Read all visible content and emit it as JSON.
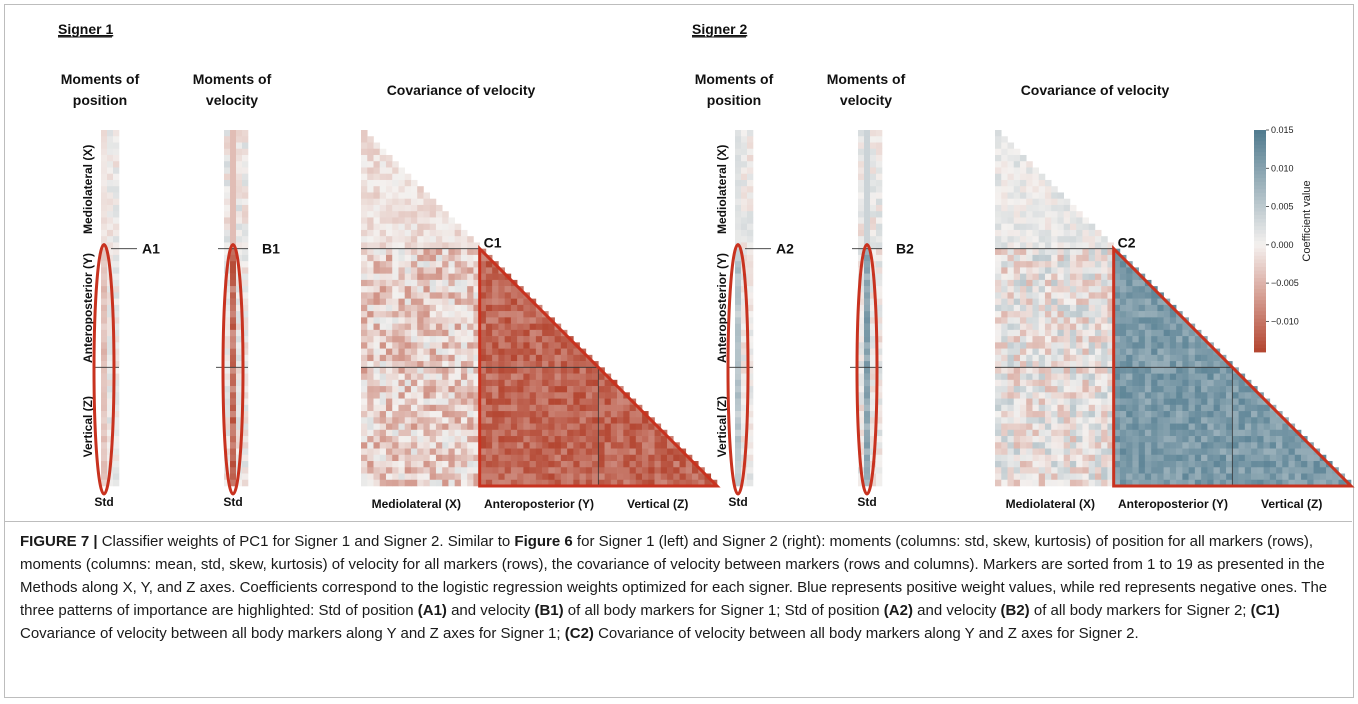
{
  "figure": {
    "panels": [
      {
        "heading": "Signer 1",
        "pos_title": [
          "Moments of",
          "position"
        ],
        "vel_title": [
          "Moments of",
          "velocity"
        ],
        "cov_title": "Covariance of velocity",
        "labels": {
          "a": "A1",
          "b": "B1",
          "c": "C1"
        },
        "row_labels": [
          "Mediolateral (X)",
          "Anteroposterior (Y)",
          "Vertical (Z)"
        ],
        "col_labels": [
          "Mediolateral (X)",
          "Anteroposterior (Y)",
          "Vertical (Z)"
        ],
        "std_label": "Std",
        "polarity": "negative"
      },
      {
        "heading": "Signer 2",
        "pos_title": [
          "Moments of",
          "position"
        ],
        "vel_title": [
          "Moments of",
          "velocity"
        ],
        "cov_title": "Covariance of velocity",
        "labels": {
          "a": "A2",
          "b": "B2",
          "c": "C2"
        },
        "row_labels": [
          "Mediolateral (X)",
          "Anteroposterior (Y)",
          "Vertical (Z)"
        ],
        "col_labels": [
          "Mediolateral (X)",
          "Anteroposterior (Y)",
          "Vertical (Z)"
        ],
        "std_label": "Std",
        "polarity": "positive"
      }
    ],
    "colorbar": {
      "label": "Coefficient value",
      "ticks": [
        "0.015",
        "0.010",
        "0.005",
        "0.000",
        "−0.005",
        "−0.010"
      ],
      "colors": {
        "positive": "#4f7a8e",
        "zero": "#f4f1ef",
        "negative": "#b3442f"
      }
    },
    "highlight_color": "#c8321f"
  },
  "chart_data": {
    "type": "heatmap",
    "panels": [
      "Signer 1",
      "Signer 2"
    ],
    "markers_per_axis": 19,
    "axes": [
      "Mediolateral (X)",
      "Anteroposterior (Y)",
      "Vertical (Z)"
    ],
    "position_moments": [
      "std",
      "skew",
      "kurtosis"
    ],
    "velocity_moments": [
      "mean",
      "std",
      "skew",
      "kurtosis"
    ],
    "colorbar_range": [
      -0.014,
      0.015
    ],
    "colorbar_label": "Coefficient value"
  },
  "caption": {
    "label": "FIGURE 7 |",
    "text": [
      " Classifier weights of PC1 for Signer 1 and Signer 2. Similar to ",
      {
        "b": "Figure 6"
      },
      " for Signer 1 (left) and Signer 2 (right): moments (columns: std, skew, kurtosis) of position for all markers (rows), moments (columns: mean, std, skew, kurtosis) of velocity for all markers (rows), the covariance of velocity between markers (rows and columns). Markers are sorted from 1 to 19 as presented in the Methods along X, Y, and Z axes. Coefficients correspond to the logistic regression weights optimized for each signer. Blue represents positive weight values, while red represents negative ones. The three patterns of importance are highlighted: Std of position ",
      {
        "b": "(A1)"
      },
      " and velocity ",
      {
        "b": "(B1)"
      },
      " of all body markers for Signer 1; Std of position ",
      {
        "b": "(A2)"
      },
      " and velocity ",
      {
        "b": "(B2)"
      },
      " of all body markers for Signer 2; ",
      {
        "b": "(C1)"
      },
      " Covariance of velocity between all body markers along Y and Z axes for Signer 1; ",
      {
        "b": "(C2)"
      },
      " Covariance of velocity between all body markers along Y and Z axes for Signer 2."
    ]
  }
}
